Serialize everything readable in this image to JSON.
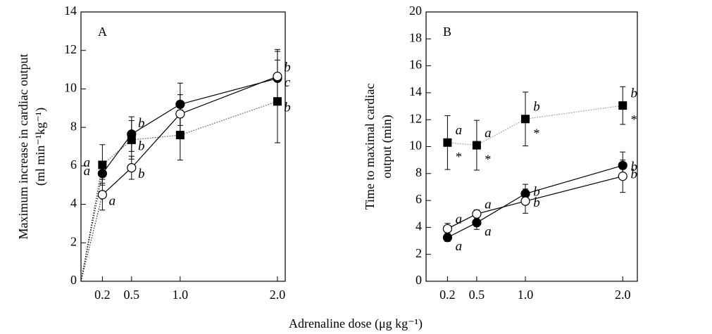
{
  "xlabel": "Adrenaline dose (μg kg⁻¹)",
  "chart_data": [
    {
      "type": "line",
      "panel_label": "A",
      "ylabel": [
        "Maximum increase in cardiac output",
        "(ml min⁻¹kg⁻¹)"
      ],
      "from_origin": true,
      "x": [
        0.2,
        0.5,
        1,
        2
      ],
      "xlim": [
        -0.02,
        2.08
      ],
      "xticks": [
        0.2,
        0.5,
        {
          "value": 1,
          "label": "1.0"
        },
        {
          "value": 2,
          "label": "2.0"
        }
      ],
      "ylim": [
        0,
        14
      ],
      "yticks": [
        0,
        2,
        4,
        6,
        8,
        10,
        12,
        14
      ],
      "series": [
        {
          "marker": "square",
          "fill": "#000",
          "color": "#777",
          "values": [
            6.05,
            7.35,
            7.6,
            9.35
          ],
          "errors": [
            1.05,
            1.0,
            1.3,
            2.15
          ],
          "labels": [
            "a",
            "b",
            null,
            "b"
          ]
        },
        {
          "marker": "circle",
          "fill": "#000",
          "color": "#000",
          "values": [
            5.6,
            7.65,
            9.2,
            10.55
          ],
          "errors": [
            0.5,
            0.9,
            1.1,
            1.4
          ],
          "labels": [
            "a",
            "b",
            null,
            "b"
          ]
        },
        {
          "marker": "circle",
          "fill": "#fff",
          "color": "#000",
          "values": [
            4.5,
            5.9,
            8.7,
            10.65
          ],
          "errors": [
            0.8,
            0.6,
            1.0,
            1.4
          ],
          "labels": [
            "a",
            "b",
            null,
            "c"
          ]
        }
      ]
    },
    {
      "type": "line",
      "panel_label": "B",
      "ylabel": [
        "Time to maximal cardiac",
        "output (min)"
      ],
      "from_origin": false,
      "x": [
        0.2,
        0.5,
        1,
        2
      ],
      "xlim": [
        -0.02,
        2.15
      ],
      "xticks": [
        0.2,
        0.5,
        {
          "value": 1,
          "label": "1.0"
        },
        {
          "value": 2,
          "label": "2.0"
        }
      ],
      "ylim": [
        0,
        20
      ],
      "yticks": [
        0,
        2,
        4,
        6,
        8,
        10,
        12,
        14,
        16,
        18,
        20
      ],
      "series": [
        {
          "marker": "square",
          "fill": "#000",
          "color": "#aaa",
          "values": [
            10.3,
            10.1,
            12.05,
            13.05
          ],
          "errors": [
            2.0,
            1.85,
            2.0,
            1.4
          ],
          "labels": [
            "a",
            "a",
            "b",
            "b"
          ],
          "flags": [
            "*",
            "*",
            "*",
            "*"
          ]
        },
        {
          "marker": "circle",
          "fill": "#000",
          "color": "#000",
          "values": [
            3.25,
            4.35,
            6.5,
            8.6
          ],
          "errors": [
            0.3,
            0.5,
            0.7,
            1.0
          ],
          "labels": [
            "a",
            "a",
            "b",
            "b"
          ]
        },
        {
          "marker": "circle",
          "fill": "#fff",
          "color": "#000",
          "values": [
            3.9,
            5.0,
            5.95,
            7.8
          ],
          "errors": [
            0.4,
            0.3,
            0.9,
            1.2
          ],
          "labels": [
            "a",
            "a",
            "b",
            "b"
          ]
        }
      ]
    }
  ]
}
